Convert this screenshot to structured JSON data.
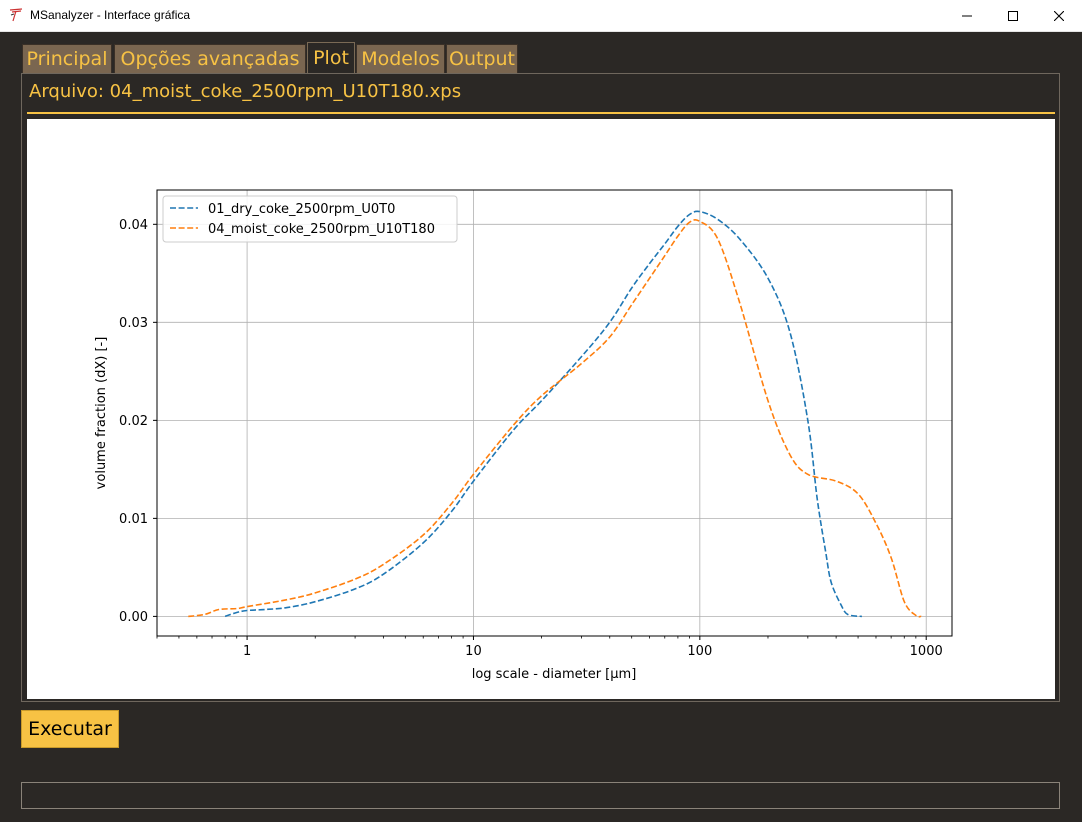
{
  "window": {
    "title": "MSanalyzer - Interface gráfica"
  },
  "tabs": [
    {
      "label": "Principal",
      "active": false
    },
    {
      "label": "Opções avançadas",
      "active": false
    },
    {
      "label": "Plot",
      "active": true
    },
    {
      "label": "Modelos",
      "active": false
    },
    {
      "label": "Output",
      "active": false
    }
  ],
  "file_label": "Arquivo: 04_moist_coke_2500rpm_U10T180.xps",
  "run_button": "Executar",
  "status_text": "",
  "colors": {
    "accent": "#f7c244",
    "background": "#2b2825",
    "tab": "#7a6650"
  },
  "chart_data": {
    "type": "line",
    "xscale": "log",
    "xlabel": "log scale - diameter [μm]",
    "ylabel": "volume fraction (dX) [-]",
    "xlim": [
      0.4,
      1300
    ],
    "ylim": [
      -0.002,
      0.0435
    ],
    "xticks": [
      1,
      10,
      100,
      1000
    ],
    "xtick_labels": [
      "1",
      "10",
      "100",
      "1000"
    ],
    "yticks": [
      0.0,
      0.01,
      0.02,
      0.03,
      0.04
    ],
    "ytick_labels": [
      "0.00",
      "0.01",
      "0.02",
      "0.03",
      "0.04"
    ],
    "grid": true,
    "legend": "top-left",
    "series": [
      {
        "name": "01_dry_coke_2500rpm_U0T0",
        "color": "#1f77b4",
        "style": "dashed",
        "points": [
          [
            0.8,
            0.0
          ],
          [
            0.9,
            0.0004
          ],
          [
            1.0,
            0.0006
          ],
          [
            1.2,
            0.0007
          ],
          [
            1.5,
            0.0009
          ],
          [
            2.0,
            0.0015
          ],
          [
            3.0,
            0.0028
          ],
          [
            4.0,
            0.0043
          ],
          [
            6.0,
            0.0075
          ],
          [
            8.0,
            0.0107
          ],
          [
            10.0,
            0.0138
          ],
          [
            15.0,
            0.019
          ],
          [
            20.0,
            0.022
          ],
          [
            30.0,
            0.0265
          ],
          [
            40.0,
            0.03
          ],
          [
            50.0,
            0.0335
          ],
          [
            60.0,
            0.036
          ],
          [
            70.0,
            0.038
          ],
          [
            80.0,
            0.0398
          ],
          [
            90.0,
            0.041
          ],
          [
            100.0,
            0.0413
          ],
          [
            120.0,
            0.0405
          ],
          [
            150.0,
            0.0385
          ],
          [
            200.0,
            0.0345
          ],
          [
            250.0,
            0.029
          ],
          [
            300.0,
            0.02
          ],
          [
            330.0,
            0.012
          ],
          [
            360.0,
            0.0065
          ],
          [
            380.0,
            0.0035
          ],
          [
            420.0,
            0.0012
          ],
          [
            450.0,
            0.0002
          ],
          [
            520.0,
            0.0
          ]
        ]
      },
      {
        "name": "04_moist_coke_2500rpm_U10T180",
        "color": "#ff7f0e",
        "style": "dashed",
        "points": [
          [
            0.55,
            0.0
          ],
          [
            0.65,
            0.0002
          ],
          [
            0.75,
            0.0007
          ],
          [
            0.9,
            0.0008
          ],
          [
            1.0,
            0.001
          ],
          [
            1.5,
            0.0017
          ],
          [
            2.0,
            0.0024
          ],
          [
            3.0,
            0.0038
          ],
          [
            4.0,
            0.0053
          ],
          [
            6.0,
            0.0083
          ],
          [
            8.0,
            0.0115
          ],
          [
            10.0,
            0.0145
          ],
          [
            15.0,
            0.0195
          ],
          [
            20.0,
            0.0225
          ],
          [
            30.0,
            0.0258
          ],
          [
            40.0,
            0.0285
          ],
          [
            50.0,
            0.0318
          ],
          [
            60.0,
            0.0345
          ],
          [
            70.0,
            0.0368
          ],
          [
            80.0,
            0.0388
          ],
          [
            90.0,
            0.0402
          ],
          [
            100.0,
            0.0403
          ],
          [
            120.0,
            0.0385
          ],
          [
            150.0,
            0.032
          ],
          [
            200.0,
            0.022
          ],
          [
            250.0,
            0.0165
          ],
          [
            300.0,
            0.0145
          ],
          [
            400.0,
            0.0138
          ],
          [
            500.0,
            0.0125
          ],
          [
            600.0,
            0.0095
          ],
          [
            700.0,
            0.006
          ],
          [
            800.0,
            0.0015
          ],
          [
            900.0,
            0.0001
          ],
          [
            950.0,
            0.0
          ]
        ]
      }
    ]
  }
}
